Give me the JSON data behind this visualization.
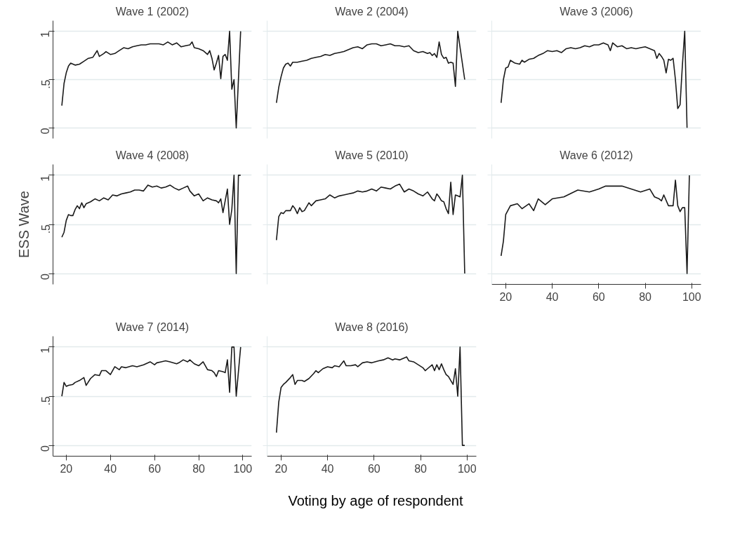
{
  "chart_data": [
    {
      "type": "line",
      "title": "Wave 1 (2002)",
      "color": "#1a1a1a",
      "grid": "y",
      "tick_labels": "y",
      "xlim": [
        14,
        104
      ],
      "xticks": [
        20,
        40,
        60,
        80,
        100
      ],
      "ylim": [
        -0.11,
        1.11
      ],
      "yticks": [
        0,
        {
          "value": 0.5,
          "label": ".5"
        },
        1
      ],
      "x": [
        18,
        19,
        20,
        21,
        22,
        24,
        26,
        28,
        30,
        32,
        34,
        35,
        37,
        38,
        40,
        42,
        44,
        46,
        48,
        50,
        52,
        54,
        56,
        58,
        60,
        62,
        64,
        66,
        68,
        70,
        72,
        74,
        76,
        77,
        78,
        80,
        82,
        84,
        85,
        86,
        87,
        88,
        89,
        90,
        91,
        92,
        93,
        94,
        95,
        96,
        97,
        99
      ],
      "values": [
        0.23,
        0.46,
        0.57,
        0.64,
        0.67,
        0.65,
        0.66,
        0.69,
        0.72,
        0.73,
        0.8,
        0.74,
        0.77,
        0.79,
        0.76,
        0.77,
        0.8,
        0.83,
        0.82,
        0.84,
        0.85,
        0.86,
        0.86,
        0.87,
        0.87,
        0.87,
        0.86,
        0.89,
        0.86,
        0.88,
        0.84,
        0.85,
        0.86,
        0.89,
        0.83,
        0.82,
        0.8,
        0.76,
        0.8,
        0.72,
        0.6,
        0.67,
        0.75,
        0.51,
        0.74,
        0.76,
        0.7,
        1.0,
        0.4,
        0.5,
        0,
        1.0
      ]
    },
    {
      "type": "line",
      "title": "Wave 2 (2004)",
      "color": "#1a1a1a",
      "grid": "y",
      "tick_labels": false,
      "xlim": [
        14,
        104
      ],
      "xticks": [
        20,
        40,
        60,
        80,
        100
      ],
      "ylim": [
        -0.11,
        1.11
      ],
      "yticks": [
        {
          "value": 0,
          "label": null
        },
        {
          "value": 0.5,
          "label": null
        },
        {
          "value": 1,
          "label": null
        }
      ],
      "x": [
        18,
        19,
        20,
        21,
        22,
        23,
        24,
        25,
        27,
        29,
        31,
        33,
        35,
        37,
        39,
        41,
        43,
        45,
        47,
        49,
        51,
        53,
        55,
        57,
        59,
        61,
        63,
        65,
        67,
        69,
        71,
        73,
        75,
        77,
        79,
        81,
        83,
        84,
        85,
        86,
        87,
        88,
        89,
        90,
        91,
        92,
        93,
        94,
        95,
        96,
        99
      ],
      "values": [
        0.26,
        0.42,
        0.53,
        0.62,
        0.66,
        0.67,
        0.64,
        0.68,
        0.68,
        0.69,
        0.7,
        0.72,
        0.73,
        0.74,
        0.76,
        0.75,
        0.77,
        0.78,
        0.79,
        0.81,
        0.83,
        0.84,
        0.82,
        0.86,
        0.87,
        0.87,
        0.85,
        0.86,
        0.87,
        0.85,
        0.85,
        0.84,
        0.85,
        0.8,
        0.78,
        0.79,
        0.77,
        0.78,
        0.75,
        0.77,
        0.73,
        0.89,
        0.76,
        0.72,
        0.73,
        0.67,
        0.68,
        0.67,
        0.43,
        1.0,
        0.5
      ]
    },
    {
      "type": "line",
      "title": "Wave 3 (2006)",
      "color": "#1a1a1a",
      "grid": "y",
      "tick_labels": false,
      "xlim": [
        14,
        104
      ],
      "xticks": [
        20,
        40,
        60,
        80,
        100
      ],
      "ylim": [
        -0.11,
        1.11
      ],
      "yticks": [
        {
          "value": 0,
          "label": null
        },
        {
          "value": 0.5,
          "label": null
        },
        {
          "value": 1,
          "label": null
        }
      ],
      "x": [
        18,
        19,
        20,
        21,
        22,
        24,
        26,
        27,
        28,
        30,
        32,
        34,
        36,
        38,
        40,
        42,
        44,
        46,
        48,
        50,
        52,
        54,
        56,
        58,
        60,
        62,
        64,
        65,
        66,
        68,
        70,
        72,
        74,
        76,
        78,
        80,
        82,
        84,
        85,
        86,
        87,
        88,
        89,
        90,
        91,
        92,
        93,
        94,
        95,
        96,
        97,
        98
      ],
      "values": [
        0.26,
        0.5,
        0.62,
        0.63,
        0.7,
        0.67,
        0.66,
        0.7,
        0.68,
        0.71,
        0.72,
        0.75,
        0.77,
        0.8,
        0.79,
        0.8,
        0.78,
        0.82,
        0.83,
        0.82,
        0.83,
        0.85,
        0.84,
        0.86,
        0.86,
        0.88,
        0.86,
        0.8,
        0.88,
        0.84,
        0.85,
        0.82,
        0.83,
        0.82,
        0.83,
        0.84,
        0.82,
        0.8,
        0.72,
        0.77,
        0.74,
        0.7,
        0.57,
        0.71,
        0.7,
        0.72,
        0.5,
        0.2,
        0.24,
        0.65,
        1.0,
        0
      ]
    },
    {
      "type": "line",
      "title": "Wave 4 (2008)",
      "ylabel": "ESS Wave",
      "color": "#1a1a1a",
      "grid": "y",
      "tick_labels": "y",
      "xlim": [
        14,
        104
      ],
      "xticks": [
        20,
        40,
        60,
        80,
        100
      ],
      "ylim": [
        -0.11,
        1.11
      ],
      "yticks": [
        0,
        {
          "value": 0.5,
          "label": ".5"
        },
        1
      ],
      "x": [
        18,
        19,
        20,
        21,
        22,
        23,
        24,
        25,
        26,
        27,
        28,
        29,
        31,
        33,
        35,
        37,
        39,
        41,
        43,
        45,
        47,
        49,
        51,
        53,
        55,
        57,
        59,
        61,
        63,
        65,
        67,
        69,
        71,
        73,
        75,
        76,
        78,
        80,
        82,
        84,
        86,
        88,
        89,
        90,
        91,
        93,
        94,
        95,
        96,
        97,
        98,
        99
      ],
      "values": [
        0.37,
        0.42,
        0.54,
        0.6,
        0.59,
        0.59,
        0.65,
        0.69,
        0.66,
        0.72,
        0.67,
        0.71,
        0.73,
        0.76,
        0.74,
        0.77,
        0.75,
        0.8,
        0.79,
        0.81,
        0.82,
        0.83,
        0.85,
        0.85,
        0.84,
        0.9,
        0.88,
        0.89,
        0.87,
        0.88,
        0.9,
        0.87,
        0.85,
        0.87,
        0.89,
        0.84,
        0.79,
        0.81,
        0.74,
        0.77,
        0.75,
        0.74,
        0.72,
        0.76,
        0.62,
        0.86,
        0.5,
        0.65,
        1.0,
        0,
        1.0,
        1.0
      ]
    },
    {
      "type": "line",
      "title": "Wave 5 (2010)",
      "color": "#1a1a1a",
      "grid": "y",
      "tick_labels": false,
      "xlim": [
        14,
        104
      ],
      "xticks": [
        20,
        40,
        60,
        80,
        100
      ],
      "ylim": [
        -0.11,
        1.11
      ],
      "yticks": [
        {
          "value": 0,
          "label": null
        },
        {
          "value": 0.5,
          "label": null
        },
        {
          "value": 1,
          "label": null
        }
      ],
      "x": [
        18,
        19,
        20,
        21,
        22,
        24,
        25,
        26,
        27,
        28,
        29,
        30,
        32,
        33,
        35,
        37,
        39,
        41,
        43,
        45,
        47,
        49,
        51,
        53,
        55,
        57,
        59,
        61,
        63,
        65,
        67,
        69,
        71,
        73,
        75,
        77,
        79,
        81,
        83,
        85,
        86,
        87,
        88,
        89,
        90,
        91,
        92,
        93,
        94,
        95,
        96,
        97,
        98,
        99
      ],
      "values": [
        0.34,
        0.58,
        0.62,
        0.61,
        0.64,
        0.64,
        0.69,
        0.66,
        0.61,
        0.67,
        0.63,
        0.64,
        0.72,
        0.69,
        0.74,
        0.75,
        0.76,
        0.8,
        0.77,
        0.79,
        0.8,
        0.81,
        0.82,
        0.84,
        0.83,
        0.84,
        0.86,
        0.84,
        0.88,
        0.87,
        0.86,
        0.89,
        0.91,
        0.83,
        0.86,
        0.84,
        0.81,
        0.79,
        0.83,
        0.76,
        0.74,
        0.81,
        0.78,
        0.74,
        0.73,
        0.66,
        0.61,
        0.93,
        0.6,
        0.8,
        0.79,
        0.78,
        1.0,
        0
      ]
    },
    {
      "type": "line",
      "title": "Wave 6 (2012)",
      "color": "#1a1a1a",
      "grid": "y",
      "tick_labels": "x",
      "xlim": [
        14,
        104
      ],
      "xticks": [
        20,
        40,
        60,
        80,
        100
      ],
      "ylim": [
        -0.11,
        1.11
      ],
      "yticks": [
        {
          "value": 0,
          "label": null
        },
        {
          "value": 0.5,
          "label": null
        },
        {
          "value": 1,
          "label": null
        }
      ],
      "x": [
        18,
        19,
        20,
        22,
        25,
        27,
        30,
        32,
        34,
        37,
        40,
        45,
        51,
        56,
        60,
        63,
        70,
        78,
        82,
        84,
        86,
        87,
        88,
        90,
        92,
        93,
        94,
        95,
        96,
        97,
        98,
        99
      ],
      "values": [
        0.18,
        0.33,
        0.6,
        0.69,
        0.71,
        0.66,
        0.71,
        0.64,
        0.76,
        0.7,
        0.76,
        0.78,
        0.85,
        0.83,
        0.86,
        0.89,
        0.89,
        0.83,
        0.86,
        0.78,
        0.76,
        0.74,
        0.8,
        0.69,
        0.69,
        0.95,
        0.69,
        0.63,
        0.67,
        0.67,
        0,
        1.0
      ]
    },
    {
      "type": "line",
      "title": "Wave 7 (2014)",
      "xlabel": "Voting by age of respondent",
      "color": "#1a1a1a",
      "grid": "y",
      "xlim": [
        14,
        104
      ],
      "xticks": [
        20,
        40,
        60,
        80,
        100
      ],
      "ylim": [
        -0.11,
        1.11
      ],
      "yticks": [
        0,
        {
          "value": 0.5,
          "label": ".5"
        },
        1
      ],
      "x": [
        18,
        19,
        20,
        21,
        23,
        24,
        26,
        28,
        29,
        31,
        33,
        35,
        36,
        38,
        40,
        42,
        44,
        45,
        47,
        50,
        52,
        55,
        58,
        60,
        61,
        63,
        65,
        67,
        70,
        71,
        73,
        75,
        76,
        78,
        80,
        82,
        84,
        86,
        87,
        88,
        89,
        91,
        92,
        93,
        94,
        95,
        96,
        97,
        99
      ],
      "values": [
        0.5,
        0.64,
        0.6,
        0.61,
        0.62,
        0.64,
        0.66,
        0.69,
        0.61,
        0.68,
        0.72,
        0.71,
        0.76,
        0.76,
        0.72,
        0.8,
        0.77,
        0.8,
        0.79,
        0.81,
        0.8,
        0.82,
        0.85,
        0.82,
        0.84,
        0.85,
        0.86,
        0.85,
        0.83,
        0.84,
        0.87,
        0.85,
        0.87,
        0.83,
        0.81,
        0.85,
        0.77,
        0.76,
        0.74,
        0.7,
        0.76,
        0.75,
        0.74,
        0.87,
        0.54,
        1.0,
        1.0,
        0.5,
        1.0
      ]
    },
    {
      "type": "line",
      "title": "Wave 8 (2016)",
      "color": "#1a1a1a",
      "grid": "y",
      "tick_labels": "x",
      "xlim": [
        14,
        104
      ],
      "xticks": [
        20,
        40,
        60,
        80,
        100
      ],
      "ylim": [
        -0.11,
        1.11
      ],
      "yticks": [
        {
          "value": 0,
          "label": null
        },
        {
          "value": 0.5,
          "label": null
        },
        {
          "value": 1,
          "label": null
        }
      ],
      "x": [
        18,
        19,
        20,
        21,
        22,
        24,
        25,
        26,
        27,
        29,
        30,
        32,
        34,
        35,
        36,
        38,
        40,
        42,
        43,
        45,
        47,
        48,
        50,
        52,
        53,
        55,
        57,
        59,
        62,
        64,
        66,
        68,
        69,
        71,
        74,
        75,
        77,
        79,
        81,
        82,
        83,
        85,
        86,
        87,
        88,
        89,
        90,
        91,
        92,
        93,
        94,
        95,
        96,
        97,
        98,
        99
      ],
      "values": [
        0.13,
        0.44,
        0.59,
        0.62,
        0.64,
        0.69,
        0.72,
        0.62,
        0.66,
        0.66,
        0.65,
        0.68,
        0.73,
        0.76,
        0.74,
        0.78,
        0.8,
        0.79,
        0.81,
        0.8,
        0.86,
        0.81,
        0.81,
        0.82,
        0.8,
        0.84,
        0.85,
        0.84,
        0.86,
        0.87,
        0.89,
        0.87,
        0.88,
        0.87,
        0.9,
        0.86,
        0.85,
        0.82,
        0.79,
        0.76,
        0.78,
        0.82,
        0.76,
        0.82,
        0.77,
        0.83,
        0.77,
        0.72,
        0.7,
        0.66,
        0.62,
        0.78,
        0.5,
        1.0,
        0,
        0
      ]
    }
  ]
}
